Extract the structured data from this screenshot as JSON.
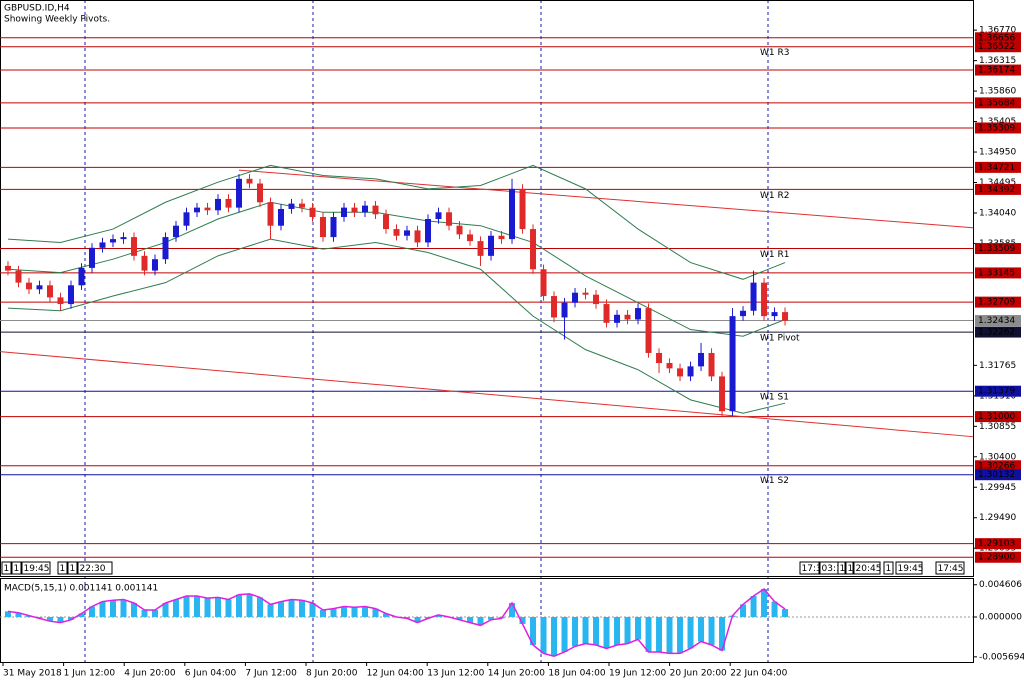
{
  "chart_data": [
    {
      "type": "candlestick",
      "title": "GBPUSD.ID,H4",
      "subtitle": "Showing Weekly Pivots.",
      "xlim": [
        -0.76,
        91.9
      ],
      "ylim": [
        1.2862,
        1.3719
      ],
      "yticks": [
        {
          "value": 1.3677,
          "label": "1.36770"
        },
        {
          "value": 1.36315,
          "label": "1.36315"
        },
        {
          "value": 1.3586,
          "label": "1.35860"
        },
        {
          "value": 1.35405,
          "label": "1.35405"
        },
        {
          "value": 1.3495,
          "label": "1.34950"
        },
        {
          "value": 1.34495,
          "label": "1.34495"
        },
        {
          "value": 1.3404,
          "label": "1.34040"
        },
        {
          "value": 1.33585,
          "label": "1.33585"
        },
        {
          "value": 1.31765,
          "label": "1.31765"
        },
        {
          "value": 1.3131,
          "label": "1.31310"
        },
        {
          "value": 1.30855,
          "label": "1.30855"
        },
        {
          "value": 1.304,
          "label": "1.30400"
        },
        {
          "value": 1.29945,
          "label": "1.29945"
        },
        {
          "value": 1.2949,
          "label": "1.29490"
        },
        {
          "value": 1.29035,
          "label": "1.29035"
        }
      ],
      "up_color": "#1a1ad0",
      "down_color": "#e02a2a",
      "open": [
        1.3325,
        1.3318,
        1.33,
        1.329,
        1.3296,
        1.3278,
        1.3268,
        1.3296,
        1.3322,
        1.3352,
        1.336,
        1.3365,
        1.3368,
        1.334,
        1.3318,
        1.3335,
        1.3368,
        1.3385,
        1.3405,
        1.3412,
        1.3408,
        1.3425,
        1.3412,
        1.3455,
        1.3448,
        1.342,
        1.3385,
        1.341,
        1.3418,
        1.3412,
        1.3398,
        1.3368,
        1.3398,
        1.3412,
        1.3405,
        1.3415,
        1.3402,
        1.338,
        1.337,
        1.3378,
        1.336,
        1.3395,
        1.3405,
        1.3385,
        1.3372,
        1.3362,
        1.334,
        1.337,
        1.3365,
        1.344,
        1.338,
        1.332,
        1.328,
        1.3248,
        1.327,
        1.3285,
        1.3282,
        1.3268,
        1.324,
        1.3252,
        1.3245,
        1.3262,
        1.3195,
        1.318,
        1.3172,
        1.316,
        1.3175,
        1.3195,
        1.316,
        1.3108,
        1.325,
        1.3258,
        1.33,
        1.325,
        1.3256
      ],
      "high": [
        1.3332,
        1.3325,
        1.3307,
        1.3303,
        1.3303,
        1.3285,
        1.3303,
        1.3329,
        1.3359,
        1.3367,
        1.3372,
        1.3375,
        1.3375,
        1.3347,
        1.3342,
        1.3375,
        1.3392,
        1.3412,
        1.3419,
        1.3419,
        1.3432,
        1.3432,
        1.3462,
        1.3462,
        1.3455,
        1.3427,
        1.3417,
        1.3425,
        1.3425,
        1.3419,
        1.3405,
        1.3405,
        1.3419,
        1.3419,
        1.3422,
        1.3422,
        1.3409,
        1.3387,
        1.3385,
        1.3385,
        1.3402,
        1.3412,
        1.3412,
        1.3392,
        1.3379,
        1.3369,
        1.3377,
        1.3377,
        1.3455,
        1.3447,
        1.3387,
        1.3327,
        1.3287,
        1.3277,
        1.3292,
        1.3292,
        1.3289,
        1.3275,
        1.3259,
        1.3259,
        1.3269,
        1.3269,
        1.3202,
        1.3187,
        1.3179,
        1.3182,
        1.321,
        1.3202,
        1.3167,
        1.3262,
        1.3265,
        1.3318,
        1.3307,
        1.3263,
        1.3263
      ],
      "low": [
        1.3311,
        1.3293,
        1.3283,
        1.3283,
        1.3271,
        1.3258,
        1.3261,
        1.3289,
        1.3315,
        1.3345,
        1.3353,
        1.3358,
        1.3333,
        1.3311,
        1.3311,
        1.3328,
        1.3361,
        1.3378,
        1.3398,
        1.3401,
        1.3401,
        1.3405,
        1.3405,
        1.3441,
        1.3413,
        1.3365,
        1.3378,
        1.3403,
        1.3405,
        1.3391,
        1.3361,
        1.3361,
        1.3391,
        1.3398,
        1.3398,
        1.3395,
        1.3373,
        1.3363,
        1.3363,
        1.3353,
        1.3353,
        1.3388,
        1.3378,
        1.3365,
        1.3355,
        1.3325,
        1.3333,
        1.3358,
        1.3358,
        1.3373,
        1.3313,
        1.3273,
        1.3241,
        1.3215,
        1.3263,
        1.3275,
        1.3261,
        1.3233,
        1.3233,
        1.3238,
        1.3238,
        1.3188,
        1.3165,
        1.3165,
        1.3153,
        1.3153,
        1.3168,
        1.3153,
        1.3101,
        1.3101,
        1.3243,
        1.3251,
        1.3243,
        1.3243,
        1.3236
      ],
      "close": [
        1.3318,
        1.33,
        1.329,
        1.3296,
        1.3278,
        1.3268,
        1.3296,
        1.3322,
        1.3352,
        1.336,
        1.3365,
        1.3368,
        1.334,
        1.3318,
        1.3335,
        1.3368,
        1.3385,
        1.3405,
        1.3412,
        1.3408,
        1.3425,
        1.3412,
        1.3455,
        1.3448,
        1.342,
        1.3385,
        1.341,
        1.3418,
        1.3412,
        1.3398,
        1.3368,
        1.3398,
        1.3412,
        1.3405,
        1.3415,
        1.3402,
        1.338,
        1.337,
        1.3378,
        1.336,
        1.3395,
        1.3405,
        1.3385,
        1.3372,
        1.3362,
        1.334,
        1.337,
        1.3365,
        1.344,
        1.338,
        1.332,
        1.328,
        1.3248,
        1.327,
        1.3285,
        1.3282,
        1.3268,
        1.324,
        1.3252,
        1.3245,
        1.3262,
        1.3195,
        1.318,
        1.3172,
        1.316,
        1.3175,
        1.3195,
        1.316,
        1.3108,
        1.325,
        1.3258,
        1.33,
        1.325,
        1.3256,
        1.3243
      ],
      "band_x": [
        0,
        5,
        10,
        15,
        20,
        25,
        30,
        35,
        40,
        45,
        50,
        55,
        60,
        65,
        70,
        74
      ],
      "bands": [
        {
          "color": "#2e7d4f",
          "values": [
            1.3365,
            1.336,
            1.338,
            1.342,
            1.345,
            1.3475,
            1.346,
            1.3455,
            1.344,
            1.3445,
            1.3475,
            1.344,
            1.338,
            1.333,
            1.3305,
            1.333
          ]
        },
        {
          "color": "#2e7d4f",
          "values": [
            1.332,
            1.3315,
            1.3335,
            1.336,
            1.3395,
            1.342,
            1.3405,
            1.3405,
            1.3392,
            1.3385,
            1.336,
            1.331,
            1.327,
            1.323,
            1.322,
            1.3245
          ]
        },
        {
          "color": "#2e7d4f",
          "values": [
            1.3262,
            1.3258,
            1.328,
            1.33,
            1.334,
            1.3365,
            1.335,
            1.336,
            1.3345,
            1.332,
            1.325,
            1.32,
            1.317,
            1.3125,
            1.3105,
            1.312
          ]
        }
      ],
      "trendlines": [
        {
          "color": "#e03030",
          "x": [
            22,
            91.9
          ],
          "y": [
            1.3468,
            1.3382
          ]
        },
        {
          "color": "#e03030",
          "x": [
            -0.76,
            91.9
          ],
          "y": [
            1.3197,
            1.307
          ]
        }
      ],
      "levels": [
        {
          "value": 1.36656,
          "label": "1.36656",
          "color": "#c00000"
        },
        {
          "value": 1.36522,
          "label": "1.36522",
          "color": "#c00000",
          "name": "W1 R3"
        },
        {
          "value": 1.36174,
          "label": "1.36174",
          "color": "#c00000"
        },
        {
          "value": 1.35684,
          "label": "1.35684",
          "color": "#c00000"
        },
        {
          "value": 1.35309,
          "label": "1.35309",
          "color": "#c00000"
        },
        {
          "value": 1.34721,
          "label": "1.34721",
          "color": "#c00000"
        },
        {
          "value": 1.34392,
          "label": "1.34392",
          "color": "#c00000",
          "name": "W1 R2"
        },
        {
          "value": 1.33509,
          "label": "1.33509",
          "color": "#c00000",
          "name": "W1 R1"
        },
        {
          "value": 1.33145,
          "label": "1.33145",
          "color": "#c00000"
        },
        {
          "value": 1.32709,
          "label": "1.32709",
          "color": "#c00000"
        },
        {
          "value": 1.32434,
          "label": "1.32434",
          "color": "#8c8c8c"
        },
        {
          "value": 1.32262,
          "label": "1.32262",
          "color": "#101030",
          "name": "W1 Pivot"
        },
        {
          "value": 1.31379,
          "label": "1.31379",
          "color": "#1010a0",
          "name": "W1 S1"
        },
        {
          "value": 1.31,
          "label": "1.31000",
          "color": "#c00000"
        },
        {
          "value": 1.30266,
          "label": "1.30266",
          "color": "#c00000"
        },
        {
          "value": 1.30132,
          "label": "1.30132",
          "color": "#1010a0",
          "name": "W1 S2"
        },
        {
          "value": 1.29103,
          "label": "1.29103",
          "color": "#c00000"
        },
        {
          "value": 1.289,
          "label": "1.28900",
          "color": "#c00000"
        }
      ],
      "x_labels": [
        "31 May 2018",
        "1 Jun 12:00",
        "4 Jun 20:00",
        "6 Jun 04:00",
        "7 Jun 12:00",
        "8 Jun 20:00",
        "12 Jun 04:00",
        "13 Jun 12:00",
        "14 Jun 20:00",
        "18 Jun 04:00",
        "19 Jun 12:00",
        "20 Jun 20:00",
        "22 Jun 04:00"
      ],
      "time_boxes": [
        "1",
        "1",
        "19:45",
        "1",
        "1",
        "22:30",
        "17:3",
        "03:1",
        "1",
        "1",
        "20:45",
        "1",
        "19:45",
        "17:45"
      ]
    },
    {
      "type": "macd",
      "title": "MACD(5,15,1) 0.001141 0.001141",
      "xlim": [
        -0.76,
        91.9
      ],
      "ylim": [
        -0.00643,
        0.00557
      ],
      "yticks": [
        {
          "value": 0.004606,
          "label": "0.004606"
        },
        {
          "value": 0,
          "label": "0.000000"
        },
        {
          "value": -0.005694,
          "label": "-0.005694"
        }
      ],
      "color": "#29b6f0",
      "line_color": "#e020e0",
      "values": [
        0.0008,
        0.0006,
        0.0002,
        -0.0002,
        -0.0006,
        -0.0008,
        -0.0004,
        0.0005,
        0.0015,
        0.0022,
        0.0024,
        0.0025,
        0.002,
        0.001,
        0.001,
        0.002,
        0.0025,
        0.003,
        0.003,
        0.0027,
        0.0028,
        0.0025,
        0.0032,
        0.0033,
        0.0028,
        0.0018,
        0.0022,
        0.0025,
        0.0024,
        0.002,
        0.001,
        0.0012,
        0.0015,
        0.0014,
        0.0015,
        0.0012,
        0.0005,
        0,
        -0.0002,
        -0.0008,
        -0.0002,
        0.0003,
        0,
        -0.0004,
        -0.0008,
        -0.0012,
        -0.0004,
        -0.0002,
        0.002,
        -0.001,
        -0.004,
        -0.0052,
        -0.0056,
        -0.005,
        -0.0042,
        -0.0038,
        -0.004,
        -0.0045,
        -0.004,
        -0.0038,
        -0.0032,
        -0.005,
        -0.005,
        -0.0052,
        -0.0052,
        -0.0045,
        -0.0035,
        -0.004,
        -0.0048,
        0.0002,
        0.0018,
        0.003,
        0.004,
        0.0022,
        0.001141
      ]
    }
  ]
}
